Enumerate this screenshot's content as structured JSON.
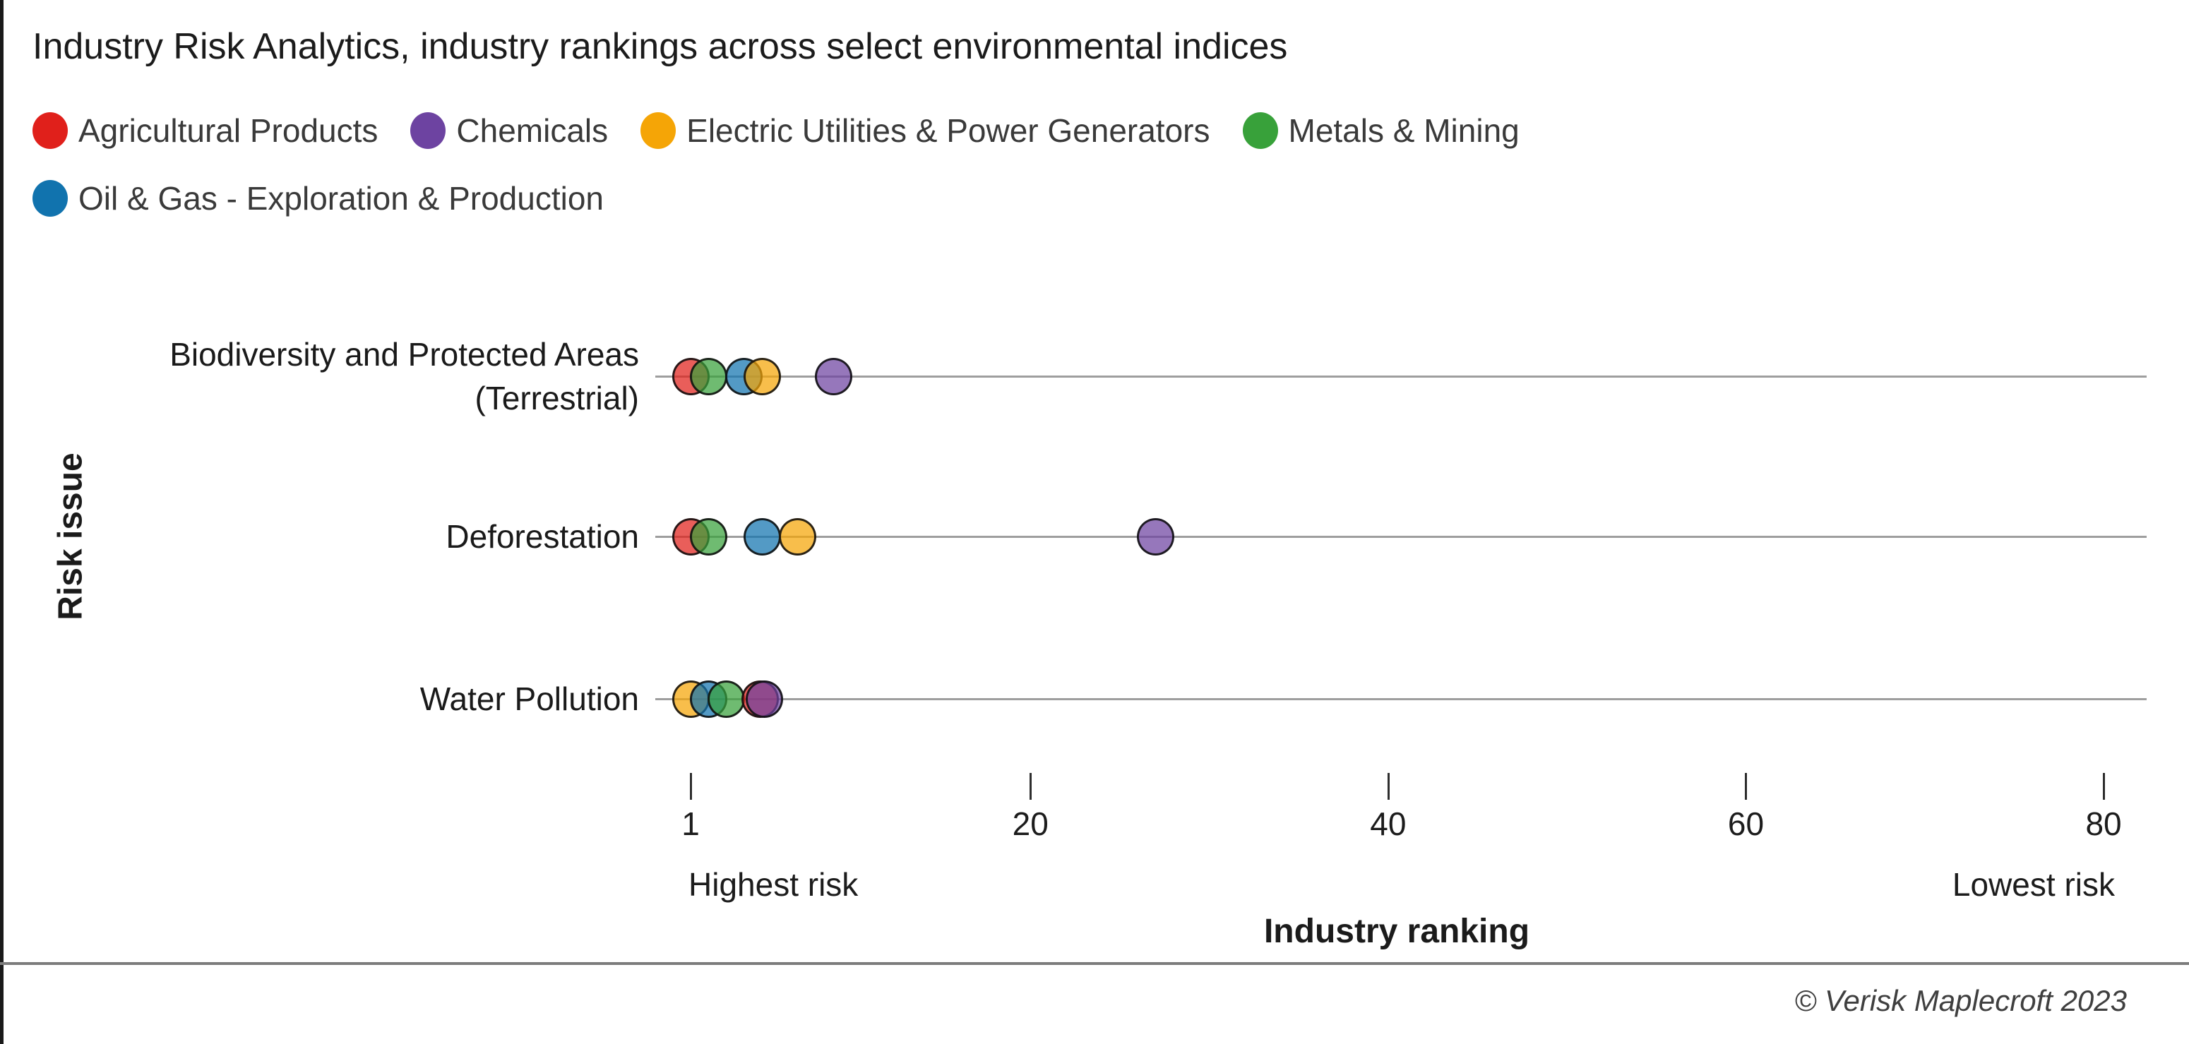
{
  "title": "Industry Risk Analytics, industry rankings across select environmental indices",
  "legend": [
    {
      "label": "Agricultural Products",
      "color": "#e0201b"
    },
    {
      "label": "Chemicals",
      "color": "#6d43a1"
    },
    {
      "label": "Electric Utilities & Power Generators",
      "color": "#f5a506"
    },
    {
      "label": "Metals & Mining",
      "color": "#38a13a"
    },
    {
      "label": "Oil & Gas - Exploration & Production",
      "color": "#1173ae"
    }
  ],
  "chart_data": {
    "type": "scatter",
    "title": "Industry Risk Analytics, industry rankings across select environmental indices",
    "xlabel": "Industry ranking",
    "ylabel": "Risk issue",
    "xlim": [
      1,
      80
    ],
    "x_ticks": [
      1,
      20,
      40,
      60,
      80
    ],
    "axis_annotations": {
      "left": "Highest risk",
      "right": "Lowest risk"
    },
    "grid": "horizontal-category-lines",
    "legend_position": "top",
    "categories": [
      "Biodiversity and Protected Areas (Terrestrial)",
      "Deforestation",
      "Water Pollution"
    ],
    "category_display_lines": [
      [
        "Biodiversity and Protected Areas",
        "(Terrestrial)"
      ],
      [
        "Deforestation"
      ],
      [
        "Water Pollution"
      ]
    ],
    "series": [
      {
        "name": "Agricultural Products",
        "color": "#e0201b",
        "values": [
          1,
          1,
          5
        ]
      },
      {
        "name": "Chemicals",
        "color": "#6d43a1",
        "values": [
          9,
          27,
          5
        ]
      },
      {
        "name": "Electric Utilities & Power Generators",
        "color": "#f5a506",
        "values": [
          5,
          7,
          1
        ]
      },
      {
        "name": "Metals & Mining",
        "color": "#38a13a",
        "values": [
          2,
          2,
          3
        ]
      },
      {
        "name": "Oil & Gas - Exploration & Production",
        "color": "#1173ae",
        "values": [
          4,
          5,
          2
        ]
      }
    ]
  },
  "footer": "© Verisk Maplecroft 2023"
}
